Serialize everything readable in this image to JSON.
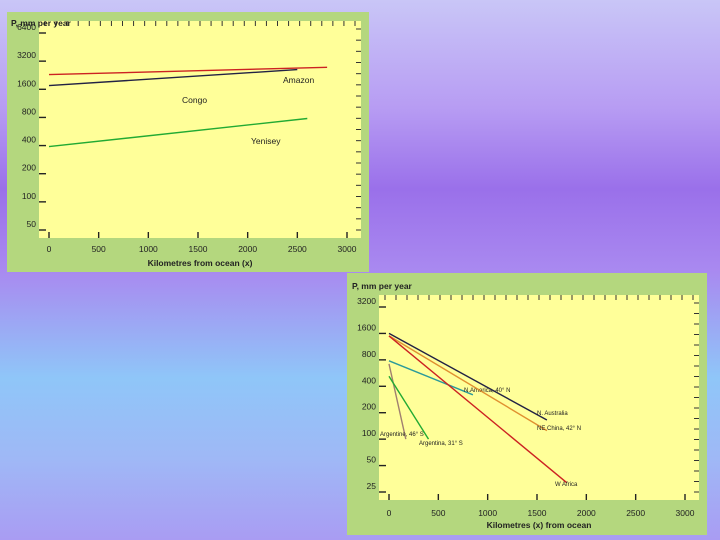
{
  "chart_data": [
    {
      "type": "line",
      "ylabel": "P, mm per year",
      "xlabel": "Kilometres from ocean (x)",
      "y_scale": "log",
      "x_ticks": [
        0,
        500,
        1000,
        1500,
        2000,
        2500,
        3000
      ],
      "y_ticks": [
        50,
        100,
        200,
        400,
        800,
        1600,
        3200,
        6400
      ],
      "xlim": [
        0,
        3000
      ],
      "ylim": [
        50,
        6400
      ],
      "colors": {
        "panel": "#b4d77e",
        "plot": "#ffff99"
      },
      "series": [
        {
          "name": "Amazon",
          "color": "#cc2222",
          "points": [
            [
              0,
              2300
            ],
            [
              2800,
              2750
            ]
          ]
        },
        {
          "name": "Congo",
          "color": "#222244",
          "points": [
            [
              0,
              1750
            ],
            [
              2500,
              2600
            ]
          ]
        },
        {
          "name": "Yenisey",
          "color": "#22aa33",
          "points": [
            [
              0,
              390
            ],
            [
              2600,
              780
            ]
          ]
        }
      ]
    },
    {
      "type": "line",
      "ylabel": "P, mm per year",
      "xlabel": "Kilometres (x) from ocean",
      "y_scale": "log",
      "x_ticks": [
        0,
        500,
        1000,
        1500,
        2000,
        2500,
        3000
      ],
      "y_ticks": [
        25,
        50,
        100,
        200,
        400,
        800,
        1600,
        3200
      ],
      "xlim": [
        0,
        3000
      ],
      "ylim": [
        25,
        3200
      ],
      "colors": {
        "panel": "#b4d77e",
        "plot": "#ffff99"
      },
      "series": [
        {
          "name": "N.America, 40° N",
          "color": "#2b9a9a",
          "points": [
            [
              0,
              780
            ],
            [
              850,
              320
            ]
          ]
        },
        {
          "name": "N. Australia",
          "color": "#222244",
          "points": [
            [
              0,
              1600
            ],
            [
              1600,
              165
            ]
          ]
        },
        {
          "name": "NE China, 42° N",
          "color": "#e09030",
          "points": [
            [
              0,
              1500
            ],
            [
              1600,
              125
            ]
          ]
        },
        {
          "name": "W Africa",
          "color": "#cc2222",
          "points": [
            [
              0,
              1500
            ],
            [
              1800,
              32
            ]
          ]
        },
        {
          "name": "Argentine, 46° S",
          "color": "#a08070",
          "points": [
            [
              0,
              720
            ],
            [
              170,
              100
            ]
          ]
        },
        {
          "name": "Argentina, 31° S",
          "color": "#22aa33",
          "points": [
            [
              0,
              520
            ],
            [
              400,
              100
            ]
          ]
        }
      ]
    }
  ]
}
